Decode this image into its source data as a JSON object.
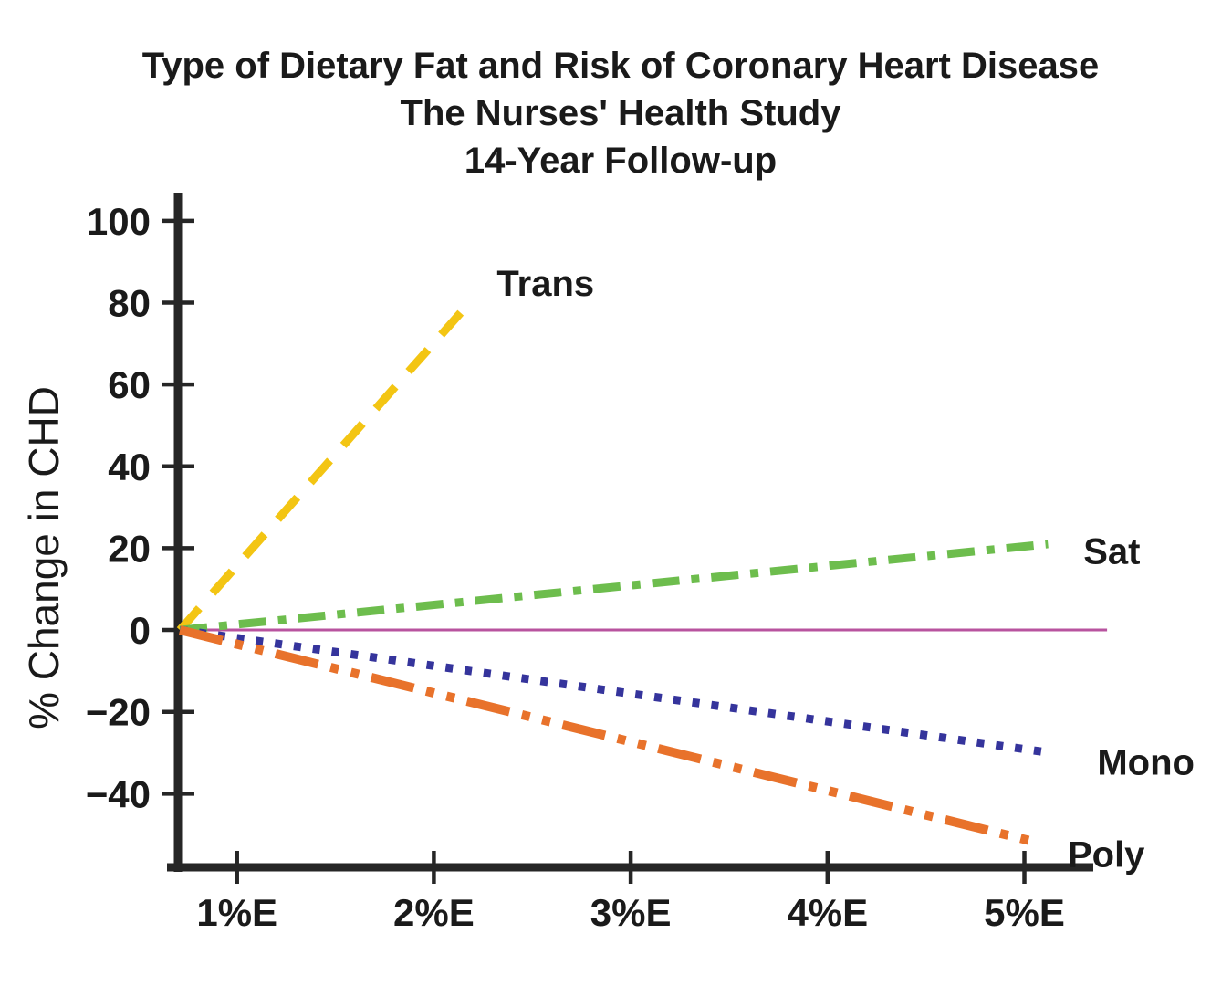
{
  "header": {
    "title_lines": [
      "Type of Dietary Fat and Risk of Coronary Heart Disease",
      "The Nurses' Health Study",
      "14-Year Follow-up"
    ]
  },
  "chart_data": {
    "type": "line",
    "title": "Type of Dietary Fat and Risk of Coronary Heart Disease",
    "subtitle_lines": [
      "The Nurses' Health Study",
      "14-Year Follow-up"
    ],
    "ylabel": "% Change in CHD",
    "xlabel": "",
    "grid": false,
    "legend_position": "inline-end-of-line-labels",
    "background": "#ffffff",
    "axis_color": "#262626",
    "text_color": "#1a1a1a",
    "xlim": [
      0.7,
      5.35
    ],
    "ylim": [
      -58,
      106
    ],
    "x_ticks": [
      {
        "value": 1,
        "label": "1%E"
      },
      {
        "value": 2,
        "label": "2%E"
      },
      {
        "value": 3,
        "label": "3%E"
      },
      {
        "value": 4,
        "label": "4%E"
      },
      {
        "value": 5,
        "label": "5%E"
      }
    ],
    "y_ticks": [
      {
        "value": 100,
        "label": "100"
      },
      {
        "value": 80,
        "label": "80"
      },
      {
        "value": 60,
        "label": "60"
      },
      {
        "value": 40,
        "label": "40"
      },
      {
        "value": 20,
        "label": "20"
      },
      {
        "value": 0,
        "label": "0"
      },
      {
        "value": -20,
        "label": "−20"
      },
      {
        "value": -40,
        "label": "−40"
      }
    ],
    "zero_line": {
      "value": 0,
      "x_range": [
        0.72,
        5.42
      ],
      "color": "#b8539f",
      "width": 3
    },
    "series": [
      {
        "name": "Trans",
        "style": "dashed",
        "color": "#f3c513",
        "dash": "32 22",
        "width": 9,
        "points": [
          [
            0.71,
            0
          ],
          [
            2.2,
            81
          ]
        ],
        "label_pos": [
          2.32,
          85
        ],
        "label_anchor": "start"
      },
      {
        "name": "Sat",
        "style": "dash-dot",
        "color": "#6dbd4d",
        "dash": "30 13 9 13",
        "width": 9,
        "points": [
          [
            0.71,
            0
          ],
          [
            5.12,
            21
          ]
        ],
        "label_pos": [
          5.3,
          19.5
        ],
        "label_anchor": "start"
      },
      {
        "name": "Mono",
        "style": "dotted",
        "color": "#35349c",
        "dash": "8 13",
        "width": 9,
        "points": [
          [
            0.71,
            0
          ],
          [
            5.13,
            -30
          ]
        ],
        "label_pos": [
          5.37,
          -32
        ],
        "label_anchor": "start"
      },
      {
        "name": "Poly",
        "style": "dash-dot-dot",
        "color": "#e8722b",
        "dash": "48 14 9 14 9 14",
        "width": 10,
        "points": [
          [
            0.71,
            0
          ],
          [
            5.07,
            -52
          ]
        ],
        "label_pos": [
          5.22,
          -54.5
        ],
        "label_anchor": "start"
      }
    ]
  }
}
